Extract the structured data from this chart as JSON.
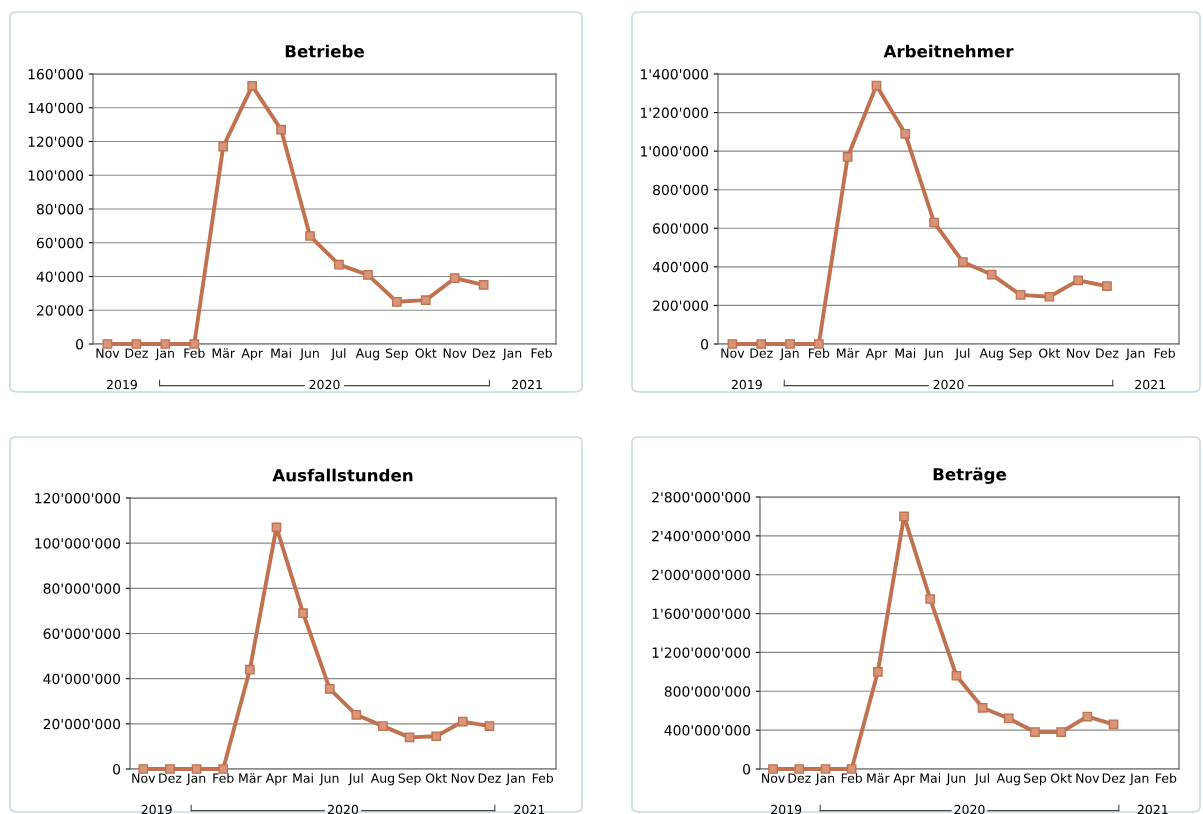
{
  "chart_data": [
    {
      "type": "line",
      "title": "Betriebe",
      "categories": [
        "Nov",
        "Dez",
        "Jan",
        "Feb",
        "Mär",
        "Apr",
        "Mai",
        "Jun",
        "Jul",
        "Aug",
        "Sep",
        "Okt",
        "Nov",
        "Dez",
        "Jan",
        "Feb"
      ],
      "series": [
        {
          "color": "#c0714f",
          "values": [
            0,
            0,
            0,
            0,
            117000,
            153000,
            127000,
            64000,
            47000,
            41000,
            25000,
            26000,
            39000,
            35000,
            null,
            null
          ]
        }
      ],
      "ylim": [
        0,
        160000
      ],
      "yticks": [
        0,
        {
          "value": 20000,
          "label": "20'000"
        },
        {
          "value": 40000,
          "label": "40'000"
        },
        {
          "value": 60000,
          "label": "60'000"
        },
        {
          "value": 80000,
          "label": "80'000"
        },
        {
          "value": 100000,
          "label": "100'000"
        },
        {
          "value": 120000,
          "label": "120'000"
        },
        {
          "value": 140000,
          "label": "140'000"
        },
        {
          "value": 160000,
          "label": "160'000"
        }
      ],
      "grid": "y",
      "marker": "square",
      "line_style": "solid",
      "annotations": [
        "2019",
        "2020",
        "2021"
      ]
    },
    {
      "type": "line",
      "title": "Arbeitnehmer",
      "categories": [
        "Nov",
        "Dez",
        "Jan",
        "Feb",
        "Mär",
        "Apr",
        "Mai",
        "Jun",
        "Jul",
        "Aug",
        "Sep",
        "Okt",
        "Nov",
        "Dez",
        "Jan",
        "Feb"
      ],
      "series": [
        {
          "color": "#c0714f",
          "values": [
            0,
            0,
            0,
            0,
            970000,
            1340000,
            1090000,
            630000,
            425000,
            360000,
            255000,
            245000,
            330000,
            300000,
            null,
            null
          ]
        }
      ],
      "ylim": [
        0,
        1400000
      ],
      "yticks": [
        0,
        {
          "value": 200000,
          "label": "200'000"
        },
        {
          "value": 400000,
          "label": "400'000"
        },
        {
          "value": 600000,
          "label": "600'000"
        },
        {
          "value": 800000,
          "label": "800'000"
        },
        {
          "value": 1000000,
          "label": "1'000'000"
        },
        {
          "value": 1200000,
          "label": "1'200'000"
        },
        {
          "value": 1400000,
          "label": "1'400'000"
        }
      ],
      "grid": "y",
      "marker": "square",
      "line_style": "solid",
      "annotations": [
        "2019",
        "2020",
        "2021"
      ]
    },
    {
      "type": "line",
      "title": "Ausfallstunden",
      "categories": [
        "Nov",
        "Dez",
        "Jan",
        "Feb",
        "Mär",
        "Apr",
        "Mai",
        "Jun",
        "Jul",
        "Aug",
        "Sep",
        "Okt",
        "Nov",
        "Dez",
        "Jan",
        "Feb"
      ],
      "series": [
        {
          "color": "#c0714f",
          "values": [
            0,
            0,
            0,
            0,
            44000000,
            107000000,
            69000000,
            35500000,
            24000000,
            19000000,
            14000000,
            14500000,
            21000000,
            19000000,
            null,
            null
          ]
        }
      ],
      "ylim": [
        0,
        120000000
      ],
      "yticks": [
        0,
        {
          "value": 20000000,
          "label": "20'000'000"
        },
        {
          "value": 40000000,
          "label": "40'000'000"
        },
        {
          "value": 60000000,
          "label": "60'000'000"
        },
        {
          "value": 80000000,
          "label": "80'000'000"
        },
        {
          "value": 100000000,
          "label": "100'000'000"
        },
        {
          "value": 120000000,
          "label": "120'000'000"
        }
      ],
      "grid": "y",
      "marker": "square",
      "line_style": "solid",
      "annotations": [
        "2019",
        "2020",
        "2021"
      ]
    },
    {
      "type": "line",
      "title": "Beträge",
      "categories": [
        "Nov",
        "Dez",
        "Jan",
        "Feb",
        "Mär",
        "Apr",
        "Mai",
        "Jun",
        "Jul",
        "Aug",
        "Sep",
        "Okt",
        "Nov",
        "Dez",
        "Jan",
        "Feb"
      ],
      "series": [
        {
          "color": "#c0714f",
          "values": [
            0,
            0,
            0,
            0,
            1000000000,
            2600000000,
            1750000000,
            960000000,
            630000000,
            520000000,
            380000000,
            380000000,
            540000000,
            460000000,
            null,
            null
          ]
        }
      ],
      "ylim": [
        0,
        2800000000
      ],
      "yticks": [
        0,
        {
          "value": 400000000,
          "label": "400'000'000"
        },
        {
          "value": 800000000,
          "label": "800'000'000"
        },
        {
          "value": 1200000000,
          "label": "1'200'000'000"
        },
        {
          "value": 1600000000,
          "label": "1'600'000'000"
        },
        {
          "value": 2000000000,
          "label": "2'000'000'000"
        },
        {
          "value": 2400000000,
          "label": "2'400'000'000"
        },
        {
          "value": 2800000000,
          "label": "2'800'000'000"
        }
      ],
      "grid": "y",
      "marker": "square",
      "line_style": "solid",
      "annotations": [
        "2019",
        "2020",
        "2021"
      ]
    }
  ]
}
